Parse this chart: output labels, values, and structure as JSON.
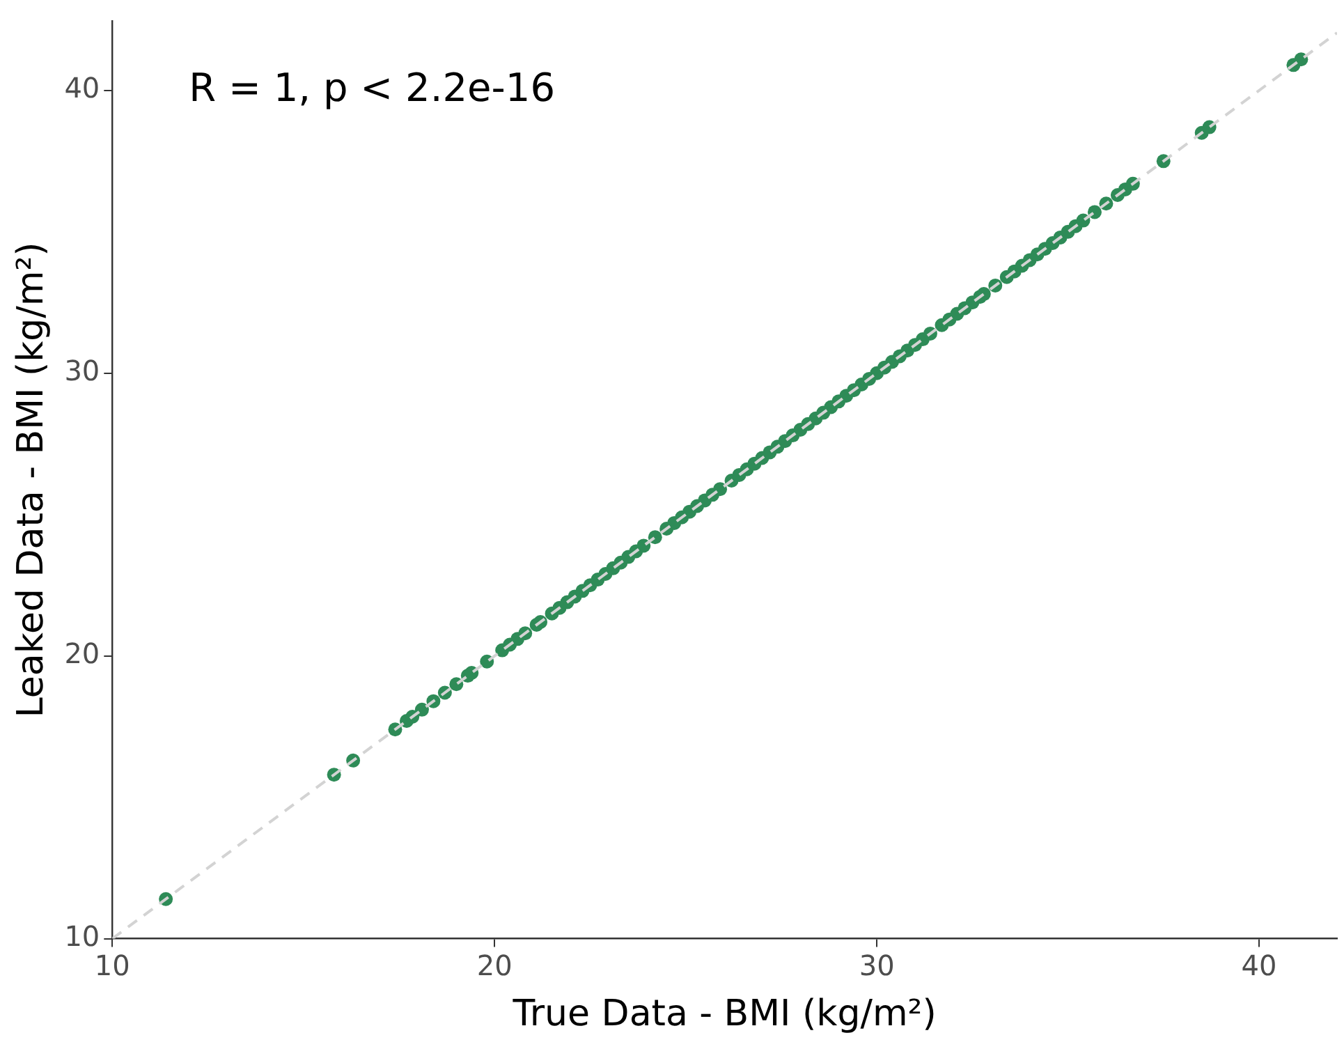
{
  "chart_data": {
    "type": "scatter",
    "xlabel": "True Data - BMI (kg/m²)",
    "ylabel": "Leaked Data - BMI (kg/m²)",
    "xlim": [
      10,
      42.04
    ],
    "ylim": [
      10,
      42.46
    ],
    "xticks": [
      10,
      20,
      30,
      40
    ],
    "yticks": [
      10,
      20,
      30,
      40
    ],
    "grid": false,
    "legend": false,
    "marker": "circle",
    "annotations": [
      "R = 1, p < 2.2e-16"
    ],
    "series": [
      {
        "type": "line",
        "color": "#d3d3d3",
        "line_style": "dashed",
        "marker": "none",
        "x": [
          10,
          42.04
        ],
        "values": [
          10,
          42.04
        ]
      },
      {
        "color": "#2e8b57",
        "x": [
          11.4,
          15.8,
          16.3,
          17.4,
          17.7,
          17.85,
          18.1,
          18.4,
          18.7,
          19.0,
          19.3,
          19.4,
          19.8,
          20.2,
          20.4,
          20.6,
          20.8,
          21.1,
          21.2,
          21.5,
          21.7,
          21.9,
          22.1,
          22.3,
          22.5,
          22.7,
          22.9,
          23.1,
          23.3,
          23.5,
          23.7,
          23.9,
          24.2,
          24.5,
          24.7,
          24.9,
          25.1,
          25.3,
          25.5,
          25.7,
          25.9,
          26.2,
          26.4,
          26.6,
          26.8,
          27.0,
          27.2,
          27.4,
          27.6,
          27.8,
          28.0,
          28.2,
          28.4,
          28.6,
          28.8,
          29.0,
          29.2,
          29.4,
          29.6,
          29.8,
          30.0,
          30.2,
          30.4,
          30.6,
          30.8,
          31.0,
          31.2,
          31.4,
          31.7,
          31.9,
          32.1,
          32.3,
          32.5,
          32.7,
          32.8,
          33.1,
          33.4,
          33.6,
          33.8,
          34.0,
          34.2,
          34.4,
          34.6,
          34.8,
          35.0,
          35.2,
          35.4,
          35.7,
          36.0,
          36.3,
          36.5,
          36.7,
          37.5,
          38.5,
          38.7,
          40.9,
          41.1
        ],
        "values": [
          11.4,
          15.8,
          16.3,
          17.4,
          17.7,
          17.85,
          18.1,
          18.4,
          18.7,
          19.0,
          19.3,
          19.4,
          19.8,
          20.2,
          20.4,
          20.6,
          20.8,
          21.1,
          21.2,
          21.5,
          21.7,
          21.9,
          22.1,
          22.3,
          22.5,
          22.7,
          22.9,
          23.1,
          23.3,
          23.5,
          23.7,
          23.9,
          24.2,
          24.5,
          24.7,
          24.9,
          25.1,
          25.3,
          25.5,
          25.7,
          25.9,
          26.2,
          26.4,
          26.6,
          26.8,
          27.0,
          27.2,
          27.4,
          27.6,
          27.8,
          28.0,
          28.2,
          28.4,
          28.6,
          28.8,
          29.0,
          29.2,
          29.4,
          29.6,
          29.8,
          30.0,
          30.2,
          30.4,
          30.6,
          30.8,
          31.0,
          31.2,
          31.4,
          31.7,
          31.9,
          32.1,
          32.3,
          32.5,
          32.7,
          32.8,
          33.1,
          33.4,
          33.6,
          33.8,
          34.0,
          34.2,
          34.4,
          34.6,
          34.8,
          35.0,
          35.2,
          35.4,
          35.7,
          36.0,
          36.3,
          36.5,
          36.7,
          37.5,
          38.5,
          38.7,
          40.9,
          41.1
        ]
      }
    ]
  }
}
